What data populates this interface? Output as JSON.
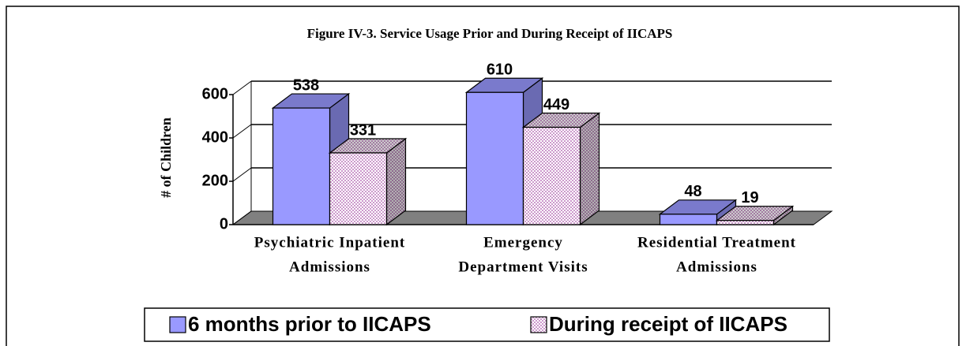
{
  "chart_data": {
    "type": "bar3d",
    "title": "Figure IV-3. Service Usage Prior and During Receipt of IICAPS",
    "y_label": "# of Children",
    "categories": [
      [
        "Psychiatric Inpatient",
        "Admissions"
      ],
      [
        "Emergency",
        "Department Visits"
      ],
      [
        "Residential Treatment",
        "Admissions"
      ]
    ],
    "series": [
      {
        "name": "6 months prior to IICAPS",
        "color": "#9999ff",
        "values": [
          538,
          610,
          48
        ]
      },
      {
        "name": "During receipt of IICAPS",
        "color": "#cc99cc",
        "fill_pattern": "dots",
        "values": [
          331,
          449,
          19
        ]
      }
    ],
    "ylim": [
      0,
      600
    ],
    "yticks": [
      0,
      200,
      400,
      600
    ],
    "grid": true,
    "floor_color": "#808080",
    "legend": "bottom"
  }
}
